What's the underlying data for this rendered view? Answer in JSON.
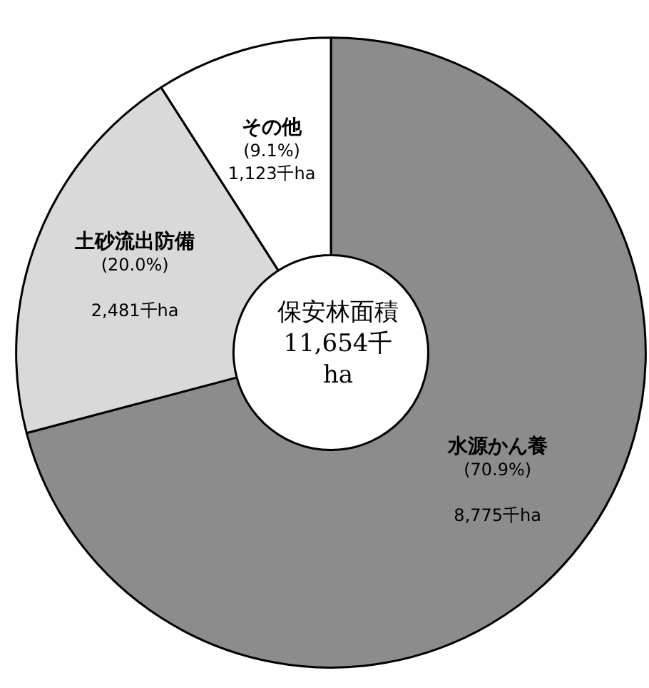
{
  "chart_data": {
    "type": "donut",
    "title": "保安林面積\n11,654千\nha",
    "categories": [
      "水源かん養",
      "土砂流出防備",
      "その他"
    ],
    "values": [
      8775,
      2481,
      1123
    ],
    "colors": [
      "#8c8c8c",
      "#d9d9d9",
      "#ffffff"
    ],
    "value_labels": [
      "(70.9%)\n\n8,775千ha",
      "(20.0%)\n\n2,481千ha",
      "(9.1%)\n1,123千ha"
    ],
    "legend": false
  }
}
